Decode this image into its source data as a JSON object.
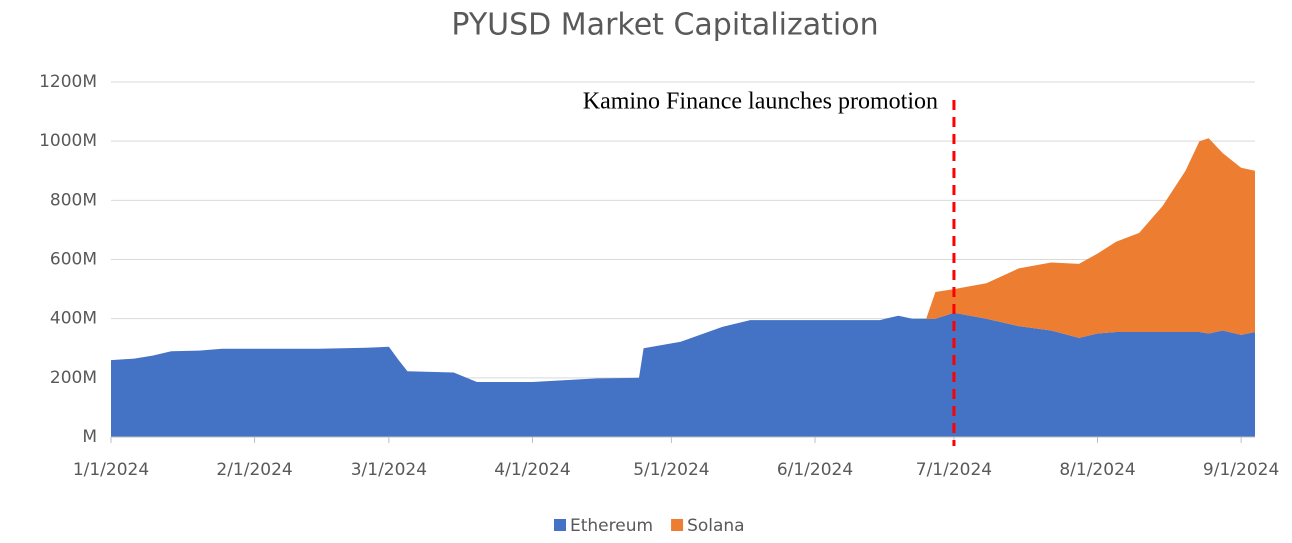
{
  "chart_data": {
    "type": "stacked-area",
    "title": "PYUSD Market Capitalization",
    "annotation": {
      "text": "Kamino Finance launches promotion",
      "x": "2024-07-01",
      "color": "#ff0000"
    },
    "x": [
      "2024-01-01",
      "2024-01-06",
      "2024-01-10",
      "2024-01-14",
      "2024-01-20",
      "2024-01-25",
      "2024-02-01",
      "2024-02-15",
      "2024-02-25",
      "2024-03-01",
      "2024-03-03",
      "2024-03-05",
      "2024-03-15",
      "2024-03-20",
      "2024-04-01",
      "2024-04-15",
      "2024-04-24",
      "2024-04-25",
      "2024-05-03",
      "2024-05-08",
      "2024-05-12",
      "2024-05-18",
      "2024-06-01",
      "2024-06-15",
      "2024-06-19",
      "2024-06-22",
      "2024-06-25",
      "2024-06-27",
      "2024-07-01",
      "2024-07-08",
      "2024-07-15",
      "2024-07-22",
      "2024-07-28",
      "2024-08-01",
      "2024-08-05",
      "2024-08-10",
      "2024-08-15",
      "2024-08-20",
      "2024-08-23",
      "2024-08-25",
      "2024-08-28",
      "2024-09-01",
      "2024-09-04"
    ],
    "series": [
      {
        "name": "Ethereum",
        "color": "#4472c4",
        "values": [
          260,
          265,
          275,
          290,
          292,
          298,
          298,
          298,
          302,
          305,
          262,
          222,
          218,
          186,
          186,
          198,
          200,
          300,
          322,
          350,
          372,
          395,
          395,
          395,
          410,
          400,
          400,
          400,
          420,
          400,
          375,
          360,
          335,
          350,
          355,
          355,
          355,
          355,
          355,
          350,
          360,
          345,
          355
        ]
      },
      {
        "name": "Solana",
        "color": "#ed7d31",
        "values": [
          null,
          null,
          null,
          null,
          null,
          null,
          null,
          null,
          null,
          null,
          null,
          null,
          null,
          null,
          null,
          null,
          null,
          null,
          null,
          null,
          null,
          null,
          null,
          null,
          null,
          null,
          0,
          90,
          80,
          120,
          195,
          230,
          250,
          270,
          305,
          335,
          425,
          545,
          645,
          660,
          600,
          565,
          545
        ]
      }
    ],
    "xlim": [
      "2024-01-01",
      "2024-09-04"
    ],
    "xticks": [
      {
        "value": "2024-01-01",
        "label": "1/1/2024"
      },
      {
        "value": "2024-02-01",
        "label": "2/1/2024"
      },
      {
        "value": "2024-03-01",
        "label": "3/1/2024"
      },
      {
        "value": "2024-04-01",
        "label": "4/1/2024"
      },
      {
        "value": "2024-05-01",
        "label": "5/1/2024"
      },
      {
        "value": "2024-06-01",
        "label": "6/1/2024"
      },
      {
        "value": "2024-07-01",
        "label": "7/1/2024"
      },
      {
        "value": "2024-08-01",
        "label": "8/1/2024"
      },
      {
        "value": "2024-09-01",
        "label": "9/1/2024"
      }
    ],
    "ylim": [
      0,
      1200
    ],
    "yticks": [
      {
        "value": 0,
        "label": "M"
      },
      {
        "value": 200,
        "label": "200M"
      },
      {
        "value": 400,
        "label": "400M"
      },
      {
        "value": 600,
        "label": "600M"
      },
      {
        "value": 800,
        "label": "800M"
      },
      {
        "value": 1000,
        "label": "1000M"
      },
      {
        "value": 1200,
        "label": "1200M"
      }
    ],
    "grid": true,
    "legend": "bottom"
  }
}
